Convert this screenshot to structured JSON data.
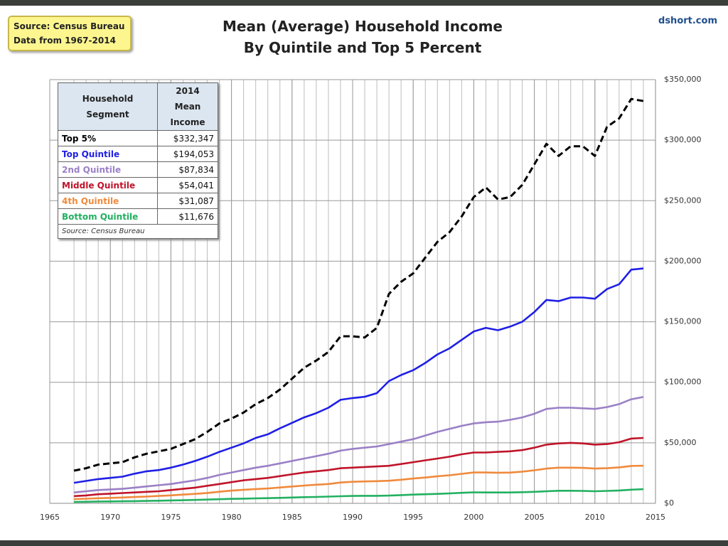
{
  "source_note": [
    "Source: Census Bureau",
    "Data from 1967-2014"
  ],
  "watermark": "dshort.com",
  "table": {
    "header": [
      "Household Segment",
      "2014 Mean Income"
    ],
    "rows": [
      [
        "Top 5%",
        "$332,347"
      ],
      [
        "Top Quintile",
        "$194,053"
      ],
      [
        "2nd Quintile",
        "$87,834"
      ],
      [
        "Middle Quintile",
        "$54,041"
      ],
      [
        "4th Quintile",
        "$31,087"
      ],
      [
        "Bottom Quintile",
        "$11,676"
      ]
    ],
    "source": "Source: Census Bureau"
  },
  "chart_data": {
    "type": "line",
    "title": "Mean (Average) Household Income",
    "subtitle": "By Quintile and Top 5 Percent",
    "x": [
      1967,
      1968,
      1969,
      1970,
      1971,
      1972,
      1973,
      1974,
      1975,
      1976,
      1977,
      1978,
      1979,
      1980,
      1981,
      1982,
      1983,
      1984,
      1985,
      1986,
      1987,
      1988,
      1989,
      1990,
      1991,
      1992,
      1993,
      1994,
      1995,
      1996,
      1997,
      1998,
      1999,
      2000,
      2001,
      2002,
      2003,
      2004,
      2005,
      2006,
      2007,
      2008,
      2009,
      2010,
      2011,
      2012,
      2013,
      2014
    ],
    "series": [
      {
        "name": "Top 5%",
        "color": "#000000",
        "line_style": "dashed",
        "values": [
          27000,
          29000,
          32000,
          33000,
          34000,
          38000,
          41000,
          43000,
          45000,
          49000,
          53000,
          59000,
          66000,
          70000,
          75000,
          82000,
          87000,
          94000,
          103000,
          112000,
          118000,
          125000,
          138000,
          138000,
          137000,
          145000,
          173000,
          183000,
          190000,
          203000,
          216000,
          224000,
          237000,
          253000,
          261000,
          251000,
          253000,
          263000,
          280000,
          297000,
          287000,
          295000,
          295000,
          287000,
          311000,
          318000,
          334000,
          332347
        ]
      },
      {
        "name": "Top Quintile",
        "color": "#1f1fe6",
        "line_style": "solid",
        "values": [
          17000,
          18500,
          20000,
          21000,
          22000,
          24500,
          26500,
          27500,
          29500,
          32000,
          35000,
          38500,
          42500,
          46000,
          49500,
          54000,
          57000,
          62000,
          66500,
          71000,
          74500,
          79000,
          85500,
          87000,
          88000,
          91000,
          101000,
          106000,
          110000,
          116000,
          123000,
          128000,
          135000,
          142000,
          145000,
          143000,
          146000,
          150000,
          158000,
          168000,
          167000,
          170000,
          170000,
          169000,
          177000,
          181000,
          193000,
          194053
        ]
      },
      {
        "name": "2nd Quintile",
        "color": "#9a80c6",
        "line_style": "solid",
        "values": [
          9000,
          10000,
          11000,
          11500,
          12000,
          13000,
          14000,
          15000,
          16000,
          17500,
          19000,
          21000,
          23500,
          25500,
          27500,
          29500,
          31000,
          33000,
          35000,
          37000,
          39000,
          41000,
          43500,
          45000,
          46000,
          47000,
          49000,
          51000,
          53000,
          56000,
          59000,
          61500,
          64000,
          66000,
          67000,
          67500,
          69000,
          71000,
          74000,
          78000,
          79000,
          79000,
          78500,
          78000,
          79500,
          82000,
          86000,
          87834
        ]
      },
      {
        "name": "Middle Quintile",
        "color": "#c0142a",
        "line_style": "solid",
        "values": [
          6000,
          6500,
          7500,
          8000,
          8500,
          9000,
          9500,
          10000,
          11000,
          12000,
          13000,
          14500,
          16000,
          17500,
          19000,
          20000,
          21000,
          22500,
          24000,
          25500,
          26500,
          27500,
          29000,
          29500,
          30000,
          30500,
          31000,
          32500,
          34000,
          35500,
          37000,
          38500,
          40500,
          42000,
          42000,
          42500,
          43000,
          44000,
          46000,
          48500,
          49500,
          50000,
          49500,
          48500,
          49000,
          50500,
          53500,
          54041
        ]
      },
      {
        "name": "4th Quintile",
        "color": "#f08a3c",
        "line_style": "solid",
        "values": [
          3500,
          3800,
          4200,
          4500,
          4800,
          5200,
          5600,
          6100,
          6600,
          7200,
          7800,
          8600,
          9600,
          10500,
          11200,
          11800,
          12300,
          13100,
          13900,
          14700,
          15400,
          16000,
          17200,
          17800,
          18100,
          18300,
          18700,
          19500,
          20500,
          21300,
          22400,
          23200,
          24400,
          25500,
          25500,
          25300,
          25400,
          26200,
          27300,
          28700,
          29500,
          29500,
          29300,
          28700,
          29000,
          29700,
          30900,
          31087
        ]
      },
      {
        "name": "Bottom Quintile",
        "color": "#22b060",
        "line_style": "solid",
        "values": [
          1200,
          1300,
          1500,
          1600,
          1700,
          1800,
          2000,
          2200,
          2400,
          2600,
          2800,
          3100,
          3400,
          3700,
          3900,
          4100,
          4300,
          4500,
          4800,
          5100,
          5300,
          5600,
          5900,
          6100,
          6200,
          6200,
          6400,
          6800,
          7200,
          7500,
          7800,
          8200,
          8700,
          9100,
          9000,
          9000,
          9000,
          9200,
          9500,
          10000,
          10400,
          10400,
          10300,
          10000,
          10300,
          10600,
          11300,
          11676
        ]
      }
    ],
    "xlim": [
      1965,
      2015
    ],
    "xticks": [
      1965,
      1970,
      1975,
      1980,
      1985,
      1990,
      1995,
      2000,
      2005,
      2010,
      2015
    ],
    "ylim": [
      0,
      350000
    ],
    "yticks": [
      {
        "value": 0,
        "label": "$0"
      },
      {
        "value": 50000,
        "label": "$50,000"
      },
      {
        "value": 100000,
        "label": "$100,000"
      },
      {
        "value": 150000,
        "label": "$150,000"
      },
      {
        "value": 200000,
        "label": "$200,000"
      },
      {
        "value": 250000,
        "label": "$250,000"
      },
      {
        "value": 300000,
        "label": "$300,000"
      },
      {
        "value": 350000,
        "label": "$350,000"
      }
    ],
    "grid": true,
    "y_axis_side": "right"
  }
}
